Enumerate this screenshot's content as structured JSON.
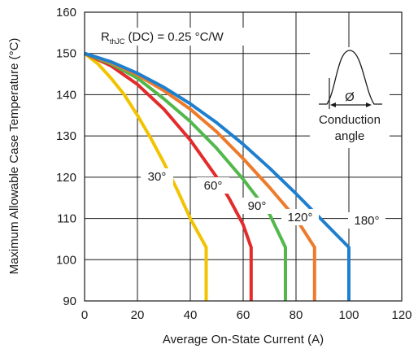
{
  "chart_data": {
    "type": "line",
    "xlabel": "Average On-State Current (A)",
    "ylabel": "Maximum Allowable Case Temperature (°C)",
    "xlim": [
      0,
      120
    ],
    "ylim": [
      90,
      160
    ],
    "xticks": [
      0,
      20,
      40,
      60,
      80,
      100,
      120
    ],
    "yticks": [
      90,
      100,
      110,
      120,
      130,
      140,
      150,
      160
    ],
    "grid": true,
    "annotation": {
      "r_main": "R",
      "r_sub": "thJC",
      "r_rest": " (DC) = 0.25 °C/W"
    },
    "inset": {
      "symbol": "Ø",
      "caption_line1": "Conduction",
      "caption_line2": "angle"
    },
    "series": [
      {
        "name": "30°",
        "color": "#f2c300",
        "x": [
          0,
          5,
          10,
          15,
          20,
          25,
          30,
          35,
          40,
          46,
          46
        ],
        "y": [
          150,
          147.5,
          144,
          140,
          135,
          129.5,
          123.5,
          117,
          110,
          103,
          90
        ]
      },
      {
        "name": "60°",
        "color": "#e32b2b",
        "x": [
          0,
          10,
          20,
          30,
          40,
          50,
          55,
          60,
          63,
          63
        ],
        "y": [
          150,
          147,
          142.5,
          136.5,
          129,
          120,
          114.5,
          108.5,
          103,
          90
        ]
      },
      {
        "name": "90°",
        "color": "#52b84b",
        "x": [
          0,
          10,
          20,
          30,
          40,
          50,
          60,
          66,
          70,
          76,
          76
        ],
        "y": [
          150,
          147.5,
          144,
          139,
          133.5,
          127,
          119.5,
          114.5,
          111,
          103,
          90
        ]
      },
      {
        "name": "120°",
        "color": "#ee7a2c",
        "x": [
          0,
          10,
          20,
          30,
          40,
          50,
          60,
          70,
          80,
          87,
          87
        ],
        "y": [
          150,
          147.8,
          144.8,
          141,
          136.5,
          131,
          124.5,
          117.5,
          110,
          103,
          90
        ]
      },
      {
        "name": "180°",
        "color": "#1f7fcf",
        "x": [
          0,
          10,
          20,
          30,
          40,
          50,
          60,
          70,
          80,
          90,
          100,
          100
        ],
        "y": [
          150,
          148,
          145.2,
          141.8,
          137.8,
          133.2,
          128,
          122.2,
          116,
          109.5,
          103,
          90
        ]
      }
    ]
  }
}
